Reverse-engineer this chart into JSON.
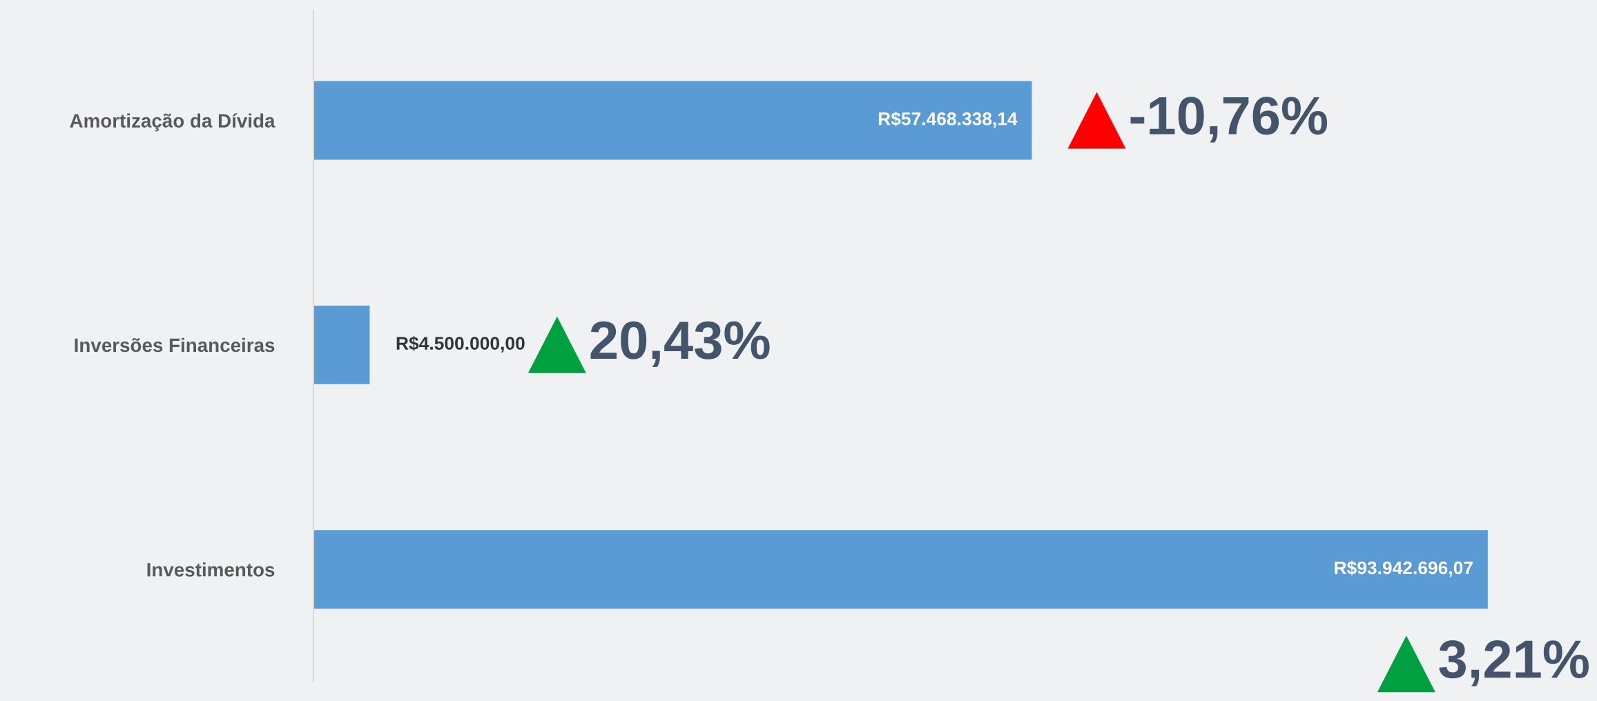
{
  "chart_data": {
    "type": "bar",
    "orientation": "horizontal",
    "categories": [
      "Amortização da Dívida",
      "Inversões Financeiras",
      "Investimentos"
    ],
    "values": [
      57468338.14,
      4500000,
      93942696.07
    ],
    "value_labels": [
      "R$57.468.338,14",
      "R$4.500.000,00",
      "R$93.942.696,07"
    ],
    "color": "#5b9bd5",
    "annotations": [
      "-10,76%",
      "20,43%",
      "3,21%"
    ]
  }
}
